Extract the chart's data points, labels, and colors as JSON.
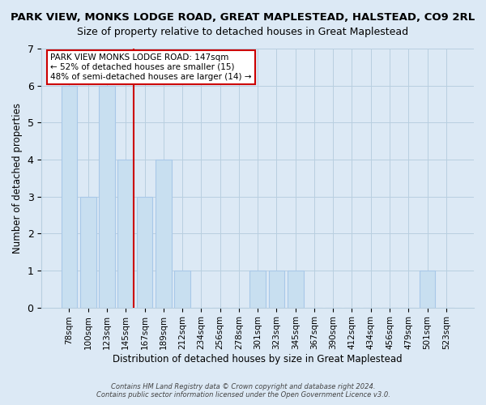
{
  "title": "PARK VIEW, MONKS LODGE ROAD, GREAT MAPLESTEAD, HALSTEAD, CO9 2RL",
  "subtitle": "Size of property relative to detached houses in Great Maplestead",
  "xlabel": "Distribution of detached houses by size in Great Maplestead",
  "ylabel": "Number of detached properties",
  "bin_labels": [
    "78sqm",
    "100sqm",
    "123sqm",
    "145sqm",
    "167sqm",
    "189sqm",
    "212sqm",
    "234sqm",
    "256sqm",
    "278sqm",
    "301sqm",
    "323sqm",
    "345sqm",
    "367sqm",
    "390sqm",
    "412sqm",
    "434sqm",
    "456sqm",
    "479sqm",
    "501sqm",
    "523sqm"
  ],
  "bar_heights": [
    6,
    3,
    6,
    4,
    3,
    4,
    1,
    0,
    0,
    0,
    1,
    1,
    1,
    0,
    0,
    0,
    0,
    0,
    0,
    1,
    0
  ],
  "highlight_index": 3,
  "bar_color": "#c8dff0",
  "bar_edge_color": "#a8c8e8",
  "annotation_box_edgecolor": "#cc0000",
  "annotation_lines": [
    "PARK VIEW MONKS LODGE ROAD: 147sqm",
    "← 52% of detached houses are smaller (15)",
    "48% of semi-detached houses are larger (14) →"
  ],
  "property_line_color": "#cc0000",
  "ylim": [
    0,
    7
  ],
  "yticks": [
    0,
    1,
    2,
    3,
    4,
    5,
    6,
    7
  ],
  "footer_line1": "Contains HM Land Registry data © Crown copyright and database right 2024.",
  "footer_line2": "Contains public sector information licensed under the Open Government Licence v3.0.",
  "background_color": "#dce9f5",
  "title_fontsize": 9.5,
  "subtitle_fontsize": 9,
  "grid_color": "#b8cfe0"
}
